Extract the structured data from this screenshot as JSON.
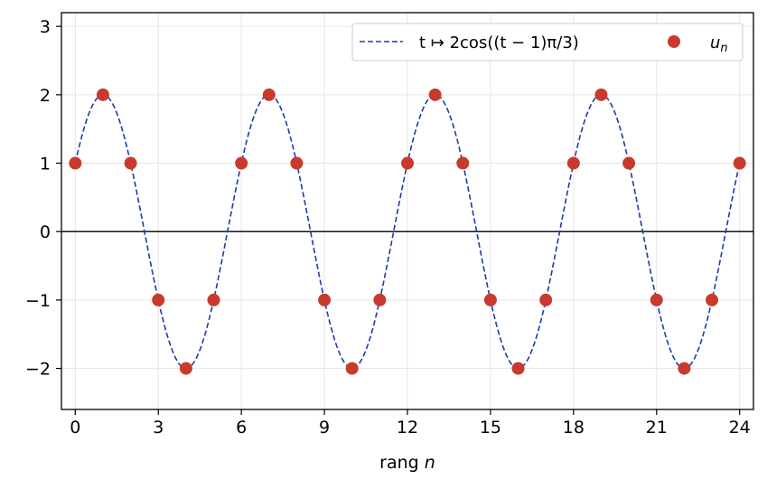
{
  "chart_data": {
    "type": "line",
    "xlabel": "rang",
    "xlabel_var": "n",
    "x_ticks": [
      0,
      3,
      6,
      9,
      12,
      15,
      18,
      21,
      24
    ],
    "y_ticks": [
      3,
      2,
      1,
      0,
      -1,
      -2
    ],
    "xlim": [
      -0.5,
      24.5
    ],
    "ylim": [
      -2.6,
      3.2
    ],
    "grid": true,
    "zero_line": true,
    "legend_position": "top-right",
    "series": [
      {
        "name": "t ↦ 2cos((t − 1)π/3)",
        "style": "dashed-line",
        "color": "#1f3ba8",
        "function": "2*cos((t-1)*pi/3)",
        "domain": [
          0,
          24
        ]
      },
      {
        "name": "u_n",
        "style": "markers",
        "color": "#c83a2e",
        "x": [
          0,
          1,
          2,
          3,
          4,
          5,
          6,
          7,
          8,
          9,
          10,
          11,
          12,
          13,
          14,
          15,
          16,
          17,
          18,
          19,
          20,
          21,
          22,
          23,
          24
        ],
        "y": [
          1,
          2,
          1,
          -1,
          -2,
          -1,
          1,
          2,
          1,
          -1,
          -2,
          -1,
          1,
          2,
          1,
          -1,
          -2,
          -1,
          1,
          2,
          1,
          -1,
          -2,
          -1,
          1
        ]
      }
    ]
  }
}
